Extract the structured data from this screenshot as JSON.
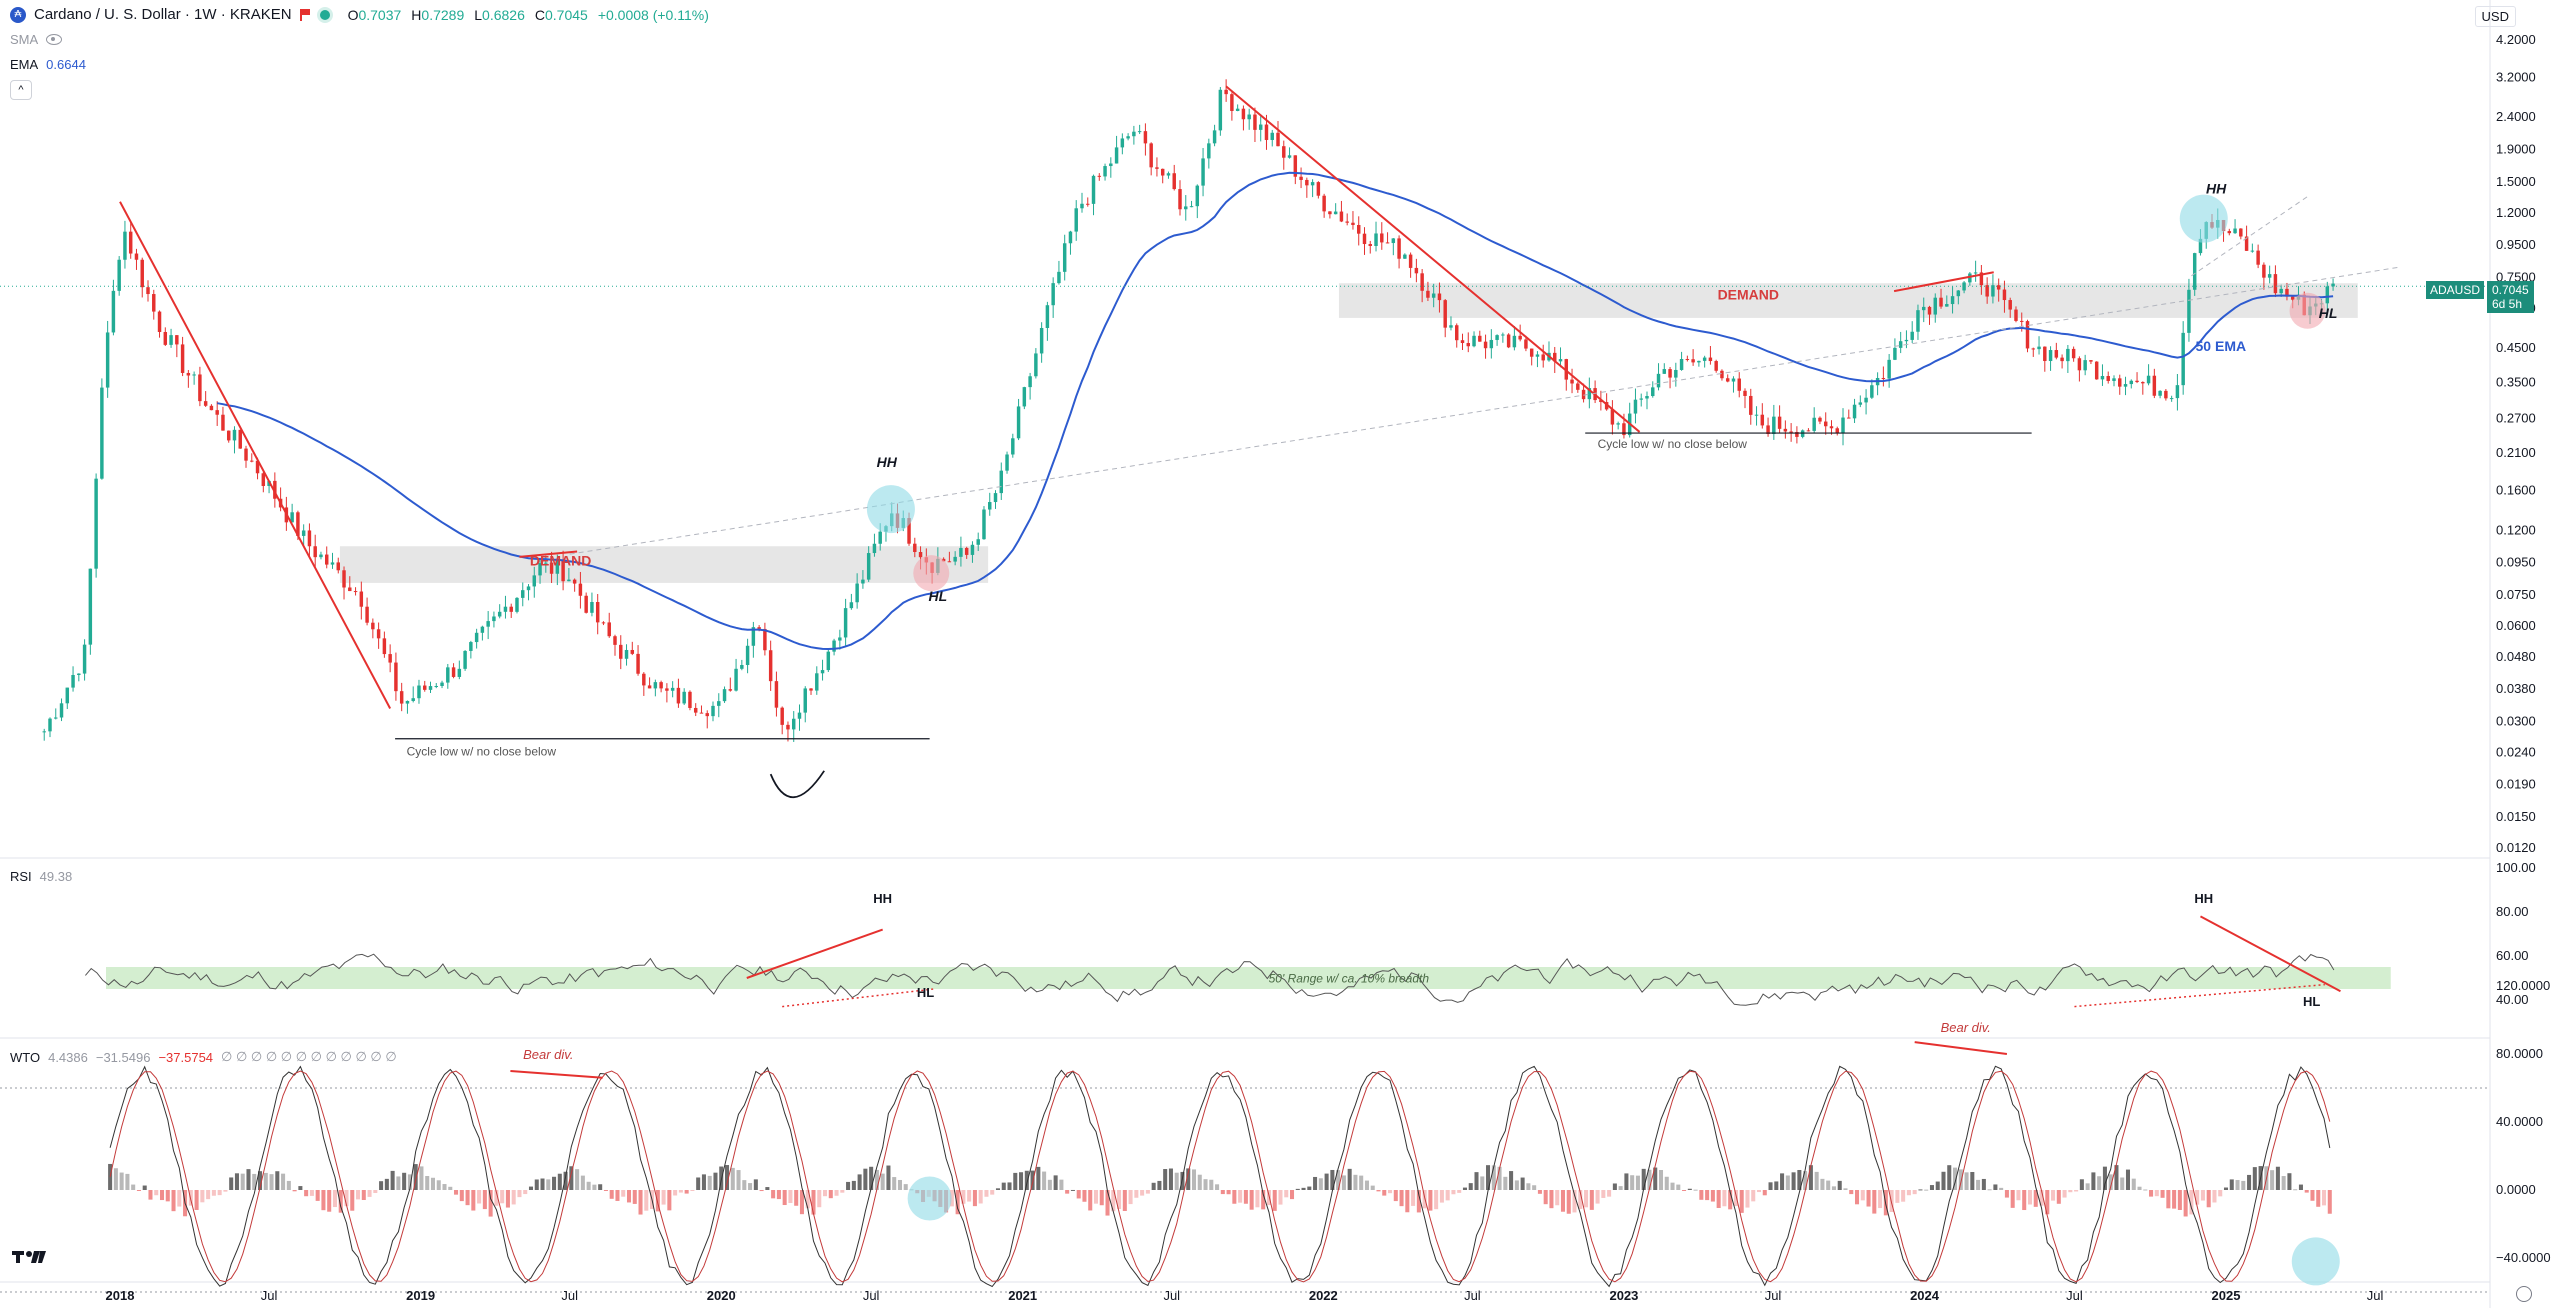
{
  "header": {
    "logo_glyph": "₳",
    "symbol_title": "Cardano / U. S. Dollar · 1W · KRAKEN",
    "ohlc": [
      {
        "k": "O",
        "v": "0.7037"
      },
      {
        "k": "H",
        "v": "0.7289"
      },
      {
        "k": "L",
        "v": "0.6826"
      },
      {
        "k": "C",
        "v": "0.7045"
      },
      {
        "k": "",
        "v": "+0.0008 (+0.11%)"
      }
    ],
    "currency": "USD"
  },
  "indicators": {
    "sma_label": "SMA",
    "ema_label": "EMA",
    "ema_value": "0.6644",
    "rsi_label": "RSI",
    "rsi_value": "49.38",
    "wto_label": "WTO",
    "wto_values": [
      "4.4386",
      "−31.5496",
      "−37.5754",
      "∅ ∅ ∅ ∅ ∅ ∅ ∅ ∅ ∅ ∅ ∅ ∅"
    ],
    "collapse_glyph": "^"
  },
  "price_tag": {
    "ticker": "ADAUSD",
    "price": "0.7045",
    "countdown": "6d 5h"
  },
  "price_axis": [
    "4.2000",
    "3.2000",
    "2.4000",
    "1.9000",
    "1.5000",
    "1.2000",
    "0.9500",
    "0.7500",
    "0.6000",
    "0.4500",
    "0.3500",
    "0.2700",
    "0.2100",
    "0.1600",
    "0.1200",
    "0.0950",
    "0.0750",
    "0.0600",
    "0.0480",
    "0.0380",
    "0.0300",
    "0.0240",
    "0.0190",
    "0.0150",
    "0.0120"
  ],
  "rsi_axis": [
    "100.00",
    "80.00",
    "60.00",
    "40.00"
  ],
  "wto_axis": [
    "120.0000",
    "80.0000",
    "40.0000",
    "0.0000",
    "−40.0000"
  ],
  "time_axis": [
    "2018",
    "Jul",
    "2019",
    "Jul",
    "2020",
    "Jul",
    "2021",
    "Jul",
    "2022",
    "Jul",
    "2023",
    "Jul",
    "2024",
    "Jul",
    "2025",
    "Jul"
  ],
  "annotations": {
    "demand": "DEMAND",
    "cycle_low": "Cycle low w/ no close below",
    "hh": "HH",
    "hl": "HL",
    "ema50": "50 EMA",
    "rsi_range": "50' Range w/ ca. 10% breadth",
    "bear_div": "Bear div."
  },
  "colors": {
    "up": "#22ab94",
    "down": "#e5312f",
    "ema": "#2d5bcf",
    "trend": "#e5312f",
    "demand_zone": "#e6e6e6",
    "rsi_zone": "#cdebc8",
    "highlight_cyan": "#8fdbe6",
    "highlight_pink": "#f2a9b0"
  },
  "chart_data": {
    "type": "candlestick",
    "title": "Cardano / U. S. Dollar · 1W · KRAKEN",
    "x_ticks": [
      "2018",
      "Jul",
      "2019",
      "Jul",
      "2020",
      "Jul",
      "2021",
      "Jul",
      "2022",
      "Jul",
      "2023",
      "Jul",
      "2024",
      "Jul",
      "2025",
      "Jul"
    ],
    "y_scale": "log",
    "ylim": [
      0.012,
      4.2
    ],
    "anchors": [
      [
        "2017-10-01",
        0.028
      ],
      [
        "2017-11-20",
        0.05
      ],
      [
        "2017-12-10",
        0.35
      ],
      [
        "2018-01-04",
        1.1
      ],
      [
        "2018-02-15",
        0.55
      ],
      [
        "2018-04-15",
        0.3
      ],
      [
        "2018-06-15",
        0.19
      ],
      [
        "2018-08-15",
        0.11
      ],
      [
        "2018-10-20",
        0.075
      ],
      [
        "2018-12-10",
        0.034
      ],
      [
        "2019-02-15",
        0.045
      ],
      [
        "2019-05-25",
        0.092
      ],
      [
        "2019-06-25",
        0.09
      ],
      [
        "2019-08-15",
        0.056
      ],
      [
        "2019-10-20",
        0.037
      ],
      [
        "2019-12-30",
        0.033
      ],
      [
        "2020-02-15",
        0.065
      ],
      [
        "2020-03-15",
        0.028
      ],
      [
        "2020-05-10",
        0.05
      ],
      [
        "2020-06-20",
        0.085
      ],
      [
        "2020-07-25",
        0.14
      ],
      [
        "2020-09-10",
        0.095
      ],
      [
        "2020-10-25",
        0.1
      ],
      [
        "2020-12-05",
        0.17
      ],
      [
        "2021-02-01",
        0.6
      ],
      [
        "2021-03-10",
        1.25
      ],
      [
        "2021-05-15",
        2.2
      ],
      [
        "2021-07-20",
        1.2
      ],
      [
        "2021-09-01",
        2.9
      ],
      [
        "2021-11-01",
        2.0
      ],
      [
        "2021-12-25",
        1.35
      ],
      [
        "2022-02-15",
        1.05
      ],
      [
        "2022-04-10",
        0.9
      ],
      [
        "2022-06-15",
        0.48
      ],
      [
        "2022-09-20",
        0.45
      ],
      [
        "2022-12-30",
        0.25
      ],
      [
        "2023-02-15",
        0.38
      ],
      [
        "2023-04-20",
        0.42
      ],
      [
        "2023-06-12",
        0.26
      ],
      [
        "2023-09-10",
        0.25
      ],
      [
        "2023-11-10",
        0.37
      ],
      [
        "2023-12-25",
        0.6
      ],
      [
        "2024-03-10",
        0.75
      ],
      [
        "2024-05-15",
        0.45
      ],
      [
        "2024-07-15",
        0.4
      ],
      [
        "2024-09-15",
        0.35
      ],
      [
        "2024-11-01",
        0.33
      ],
      [
        "2024-11-20",
        0.85
      ],
      [
        "2024-12-05",
        1.15
      ],
      [
        "2025-01-20",
        0.98
      ],
      [
        "2025-03-01",
        0.7
      ],
      [
        "2025-04-10",
        0.6
      ],
      [
        "2025-05-12",
        0.7
      ]
    ],
    "ema50_label": "50 EMA"
  }
}
